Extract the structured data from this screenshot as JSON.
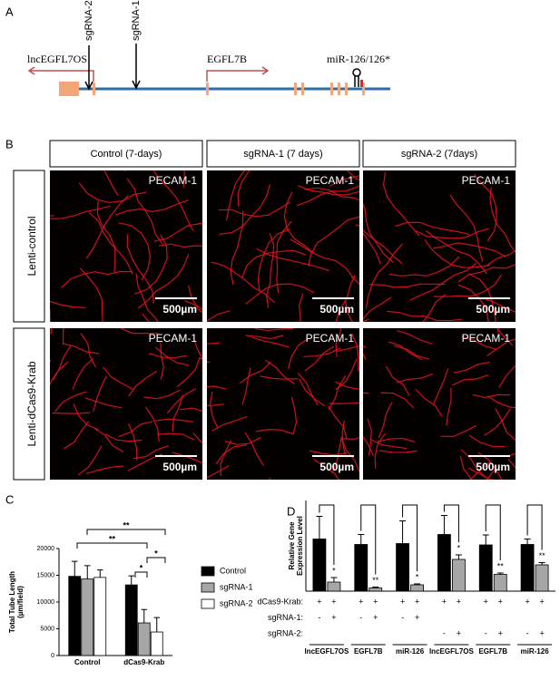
{
  "panel_labels": [
    "A",
    "B",
    "C",
    "D"
  ],
  "diagram": {
    "gene_labels": [
      "lncEGFL7OS",
      "EGFL7B",
      "miR-126/126*"
    ],
    "guide_labels": [
      "sgRNA-2",
      "sgRNA-1"
    ]
  },
  "images": {
    "columns": [
      "Control (7-days)",
      "sgRNA-1 (7 days)",
      "sgRNA-2 (7days)"
    ],
    "rows": [
      "Lenti-control",
      "Lenti-dCas9-Krab"
    ],
    "stain": "PECAM-1",
    "scale_bar": "500µm"
  },
  "chart_data": [
    {
      "type": "bar",
      "y_label": [
        "Total Tube Length",
        "(µm/field)"
      ],
      "categories": [
        "Control",
        "dCas9-Krab"
      ],
      "series": [
        {
          "name": "Control",
          "color": "#000000",
          "values": [
            14800,
            13200
          ],
          "errors": [
            2800,
            1700
          ]
        },
        {
          "name": "sgRNA-1",
          "color": "#a6a6a6",
          "values": [
            14300,
            6100
          ],
          "errors": [
            2500,
            2500
          ]
        },
        {
          "name": "sgRNA-2",
          "color": "#ffffff",
          "values": [
            14600,
            4400
          ],
          "errors": [
            1400,
            2700
          ]
        }
      ],
      "ylim": [
        0,
        20000
      ],
      "yticks": [
        0,
        5000,
        10000,
        15000,
        20000
      ],
      "significance": [
        "**",
        "**",
        "*",
        "*"
      ]
    },
    {
      "type": "bar",
      "y_label": [
        "Relative Gene",
        "Expression Level"
      ],
      "categories": [
        "lncEGFL7OS",
        "EGFL7B",
        "miR-126",
        "lncEGFL7OS",
        "EGFL7B",
        "miR-126"
      ],
      "series": [
        {
          "color": "#000000",
          "values": [
            1.15,
            1.03,
            1.05,
            1.25,
            1.02,
            1.03
          ],
          "errors": [
            0.5,
            0.22,
            0.5,
            0.42,
            0.22,
            0.12
          ]
        },
        {
          "color": "#a6a6a6",
          "values": [
            0.2,
            0.07,
            0.14,
            0.7,
            0.37,
            0.58
          ],
          "errors": [
            0.1,
            0.02,
            0.02,
            0.1,
            0.03,
            0.05
          ]
        }
      ],
      "ylim": [
        0,
        2
      ],
      "significance": [
        "*",
        "**",
        "*",
        "*",
        "**",
        "**"
      ],
      "conditions": {
        "rows": [
          "dCas9-Krab:",
          "sgRNA-1:",
          "sgRNA-2:"
        ],
        "cells": [
          [
            "+",
            "+",
            "+",
            "+",
            "+",
            "+",
            "+",
            "+",
            "+",
            "+",
            "+",
            "+"
          ],
          [
            "-",
            "+",
            "-",
            "+",
            "-",
            "+",
            null,
            null,
            null,
            null,
            null,
            null
          ],
          [
            null,
            null,
            null,
            null,
            null,
            null,
            "-",
            "+",
            "-",
            "+",
            "-",
            "+"
          ]
        ]
      }
    }
  ]
}
